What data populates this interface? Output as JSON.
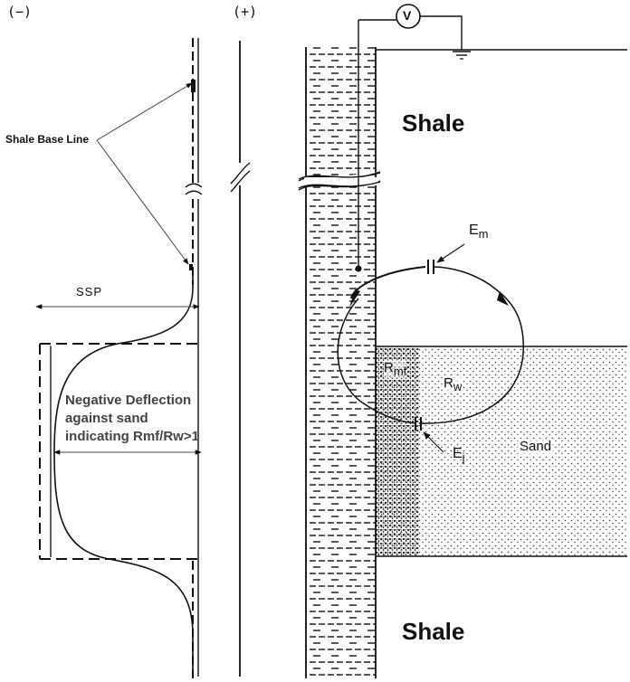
{
  "labels": {
    "minus": "(−)",
    "plus": "(+)",
    "voltmeter": "V",
    "shale_top": "Shale",
    "shale_bottom": "Shale",
    "shale_base_line": "Shale Base Line",
    "ssp": "SSP",
    "negative_deflection_1": "Negative Deflection",
    "negative_deflection_2": "against sand",
    "negative_deflection_3": "indicating Rmf/Rw>1",
    "em": "E",
    "em_sub": "m",
    "ej": "E",
    "ej_sub": "j",
    "rmf": "R",
    "rmf_sub": "mf",
    "rw": "R",
    "rw_sub": "w",
    "sand": "Sand"
  },
  "colors": {
    "ink": "#111111",
    "sand_dots": "#3a3a3a",
    "background": "#ffffff"
  }
}
